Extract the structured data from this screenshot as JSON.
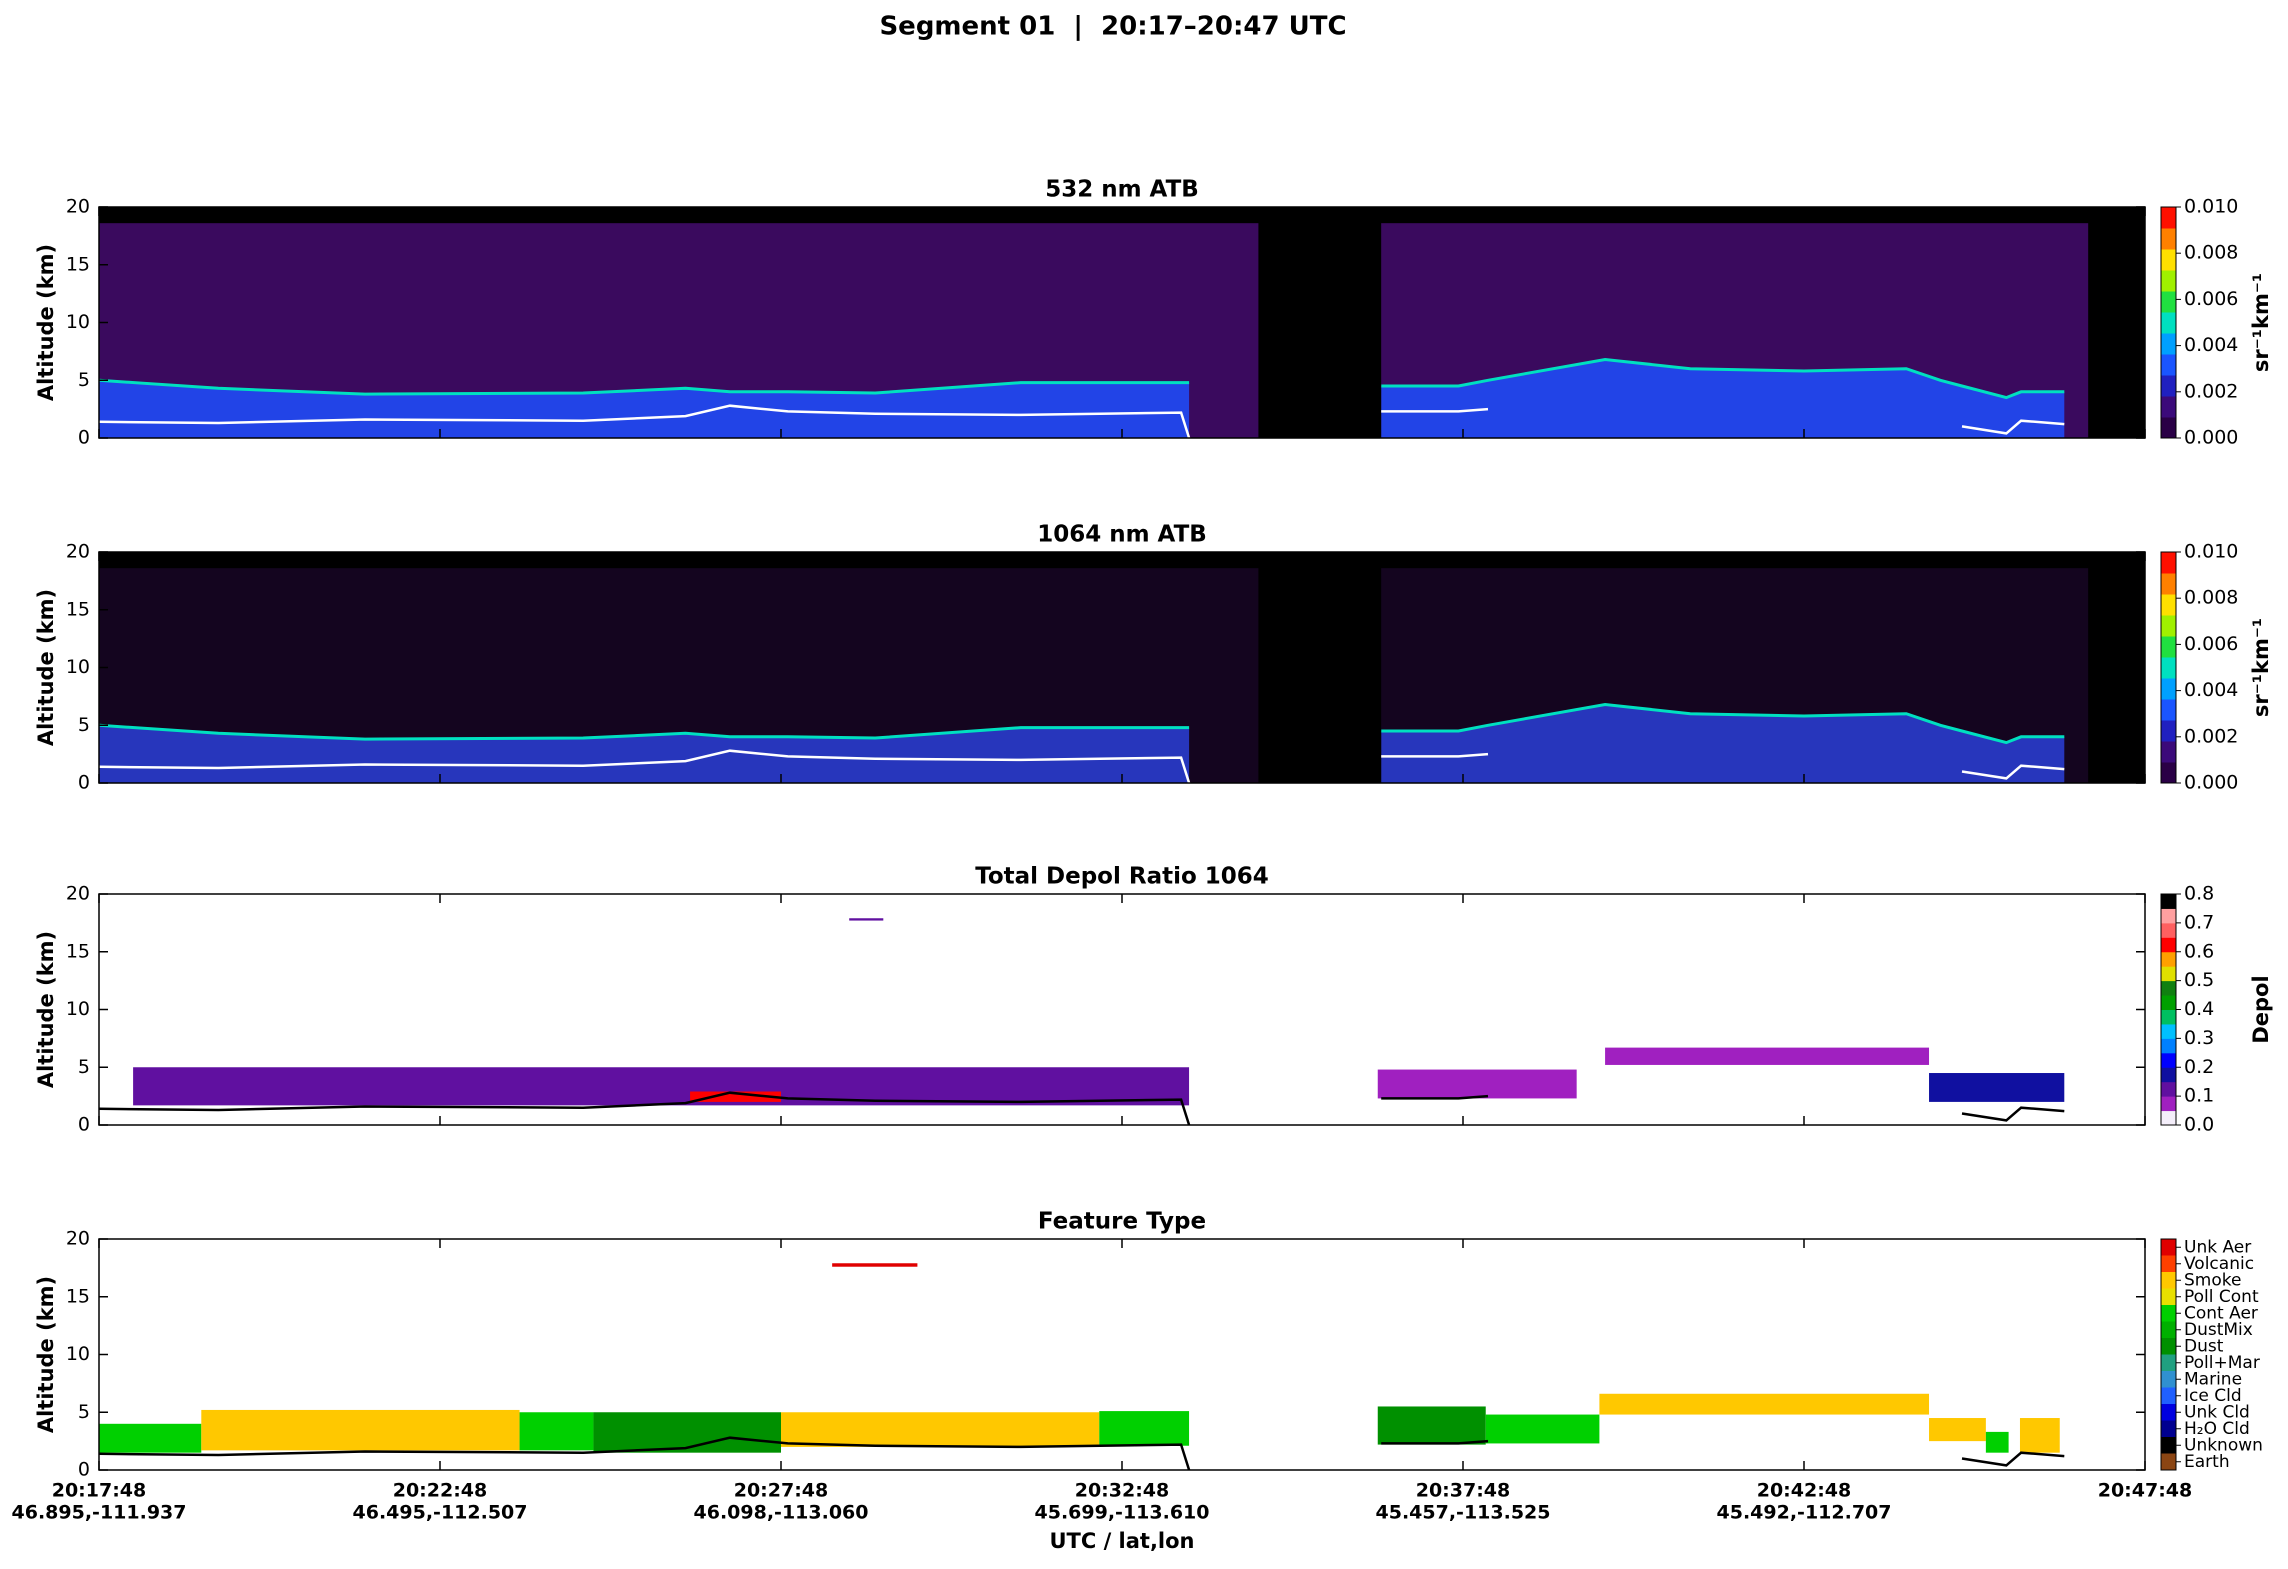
{
  "title": "Segment 01  |  20:17–20:47 UTC",
  "track": {
    "x": [
      0,
      105,
      234,
      426,
      516,
      555,
      606,
      683,
      811,
      952,
      959,
      1020,
      1128,
      1196,
      1222,
      1325,
      1400,
      1500,
      1590,
      1620,
      1639,
      1678,
      1691,
      1729
    ],
    "surface": [
      1.4,
      1.3,
      1.6,
      1.5,
      1.9,
      2.8,
      2.3,
      2.1,
      2.0,
      2.2,
      0,
      null,
      2.3,
      2.3,
      2.5,
      null,
      null,
      null,
      null,
      null,
      1.0,
      0.4,
      1.5,
      1.2
    ],
    "layer_top": [
      5.0,
      4.3,
      3.8,
      3.9,
      4.3,
      4.0,
      4.0,
      3.9,
      4.8,
      4.8,
      4.8,
      null,
      4.5,
      4.5,
      5.0,
      6.8,
      6.0,
      5.8,
      6.0,
      5.0,
      4.5,
      3.5,
      4.0,
      4.0
    ],
    "gaps": [
      [
        1020,
        1128
      ],
      [
        1750,
        1800
      ]
    ]
  },
  "chart_data": [
    {
      "type": "curtain",
      "title": "532 nm ATB",
      "ylabel": "Altitude (km)",
      "xlim": [
        0,
        1800
      ],
      "ylim": [
        0,
        20
      ],
      "yticks": [
        0,
        5,
        10,
        15,
        20
      ],
      "background": "#3a0a5e",
      "layer_color": "#1f4fff",
      "surface_color": "#ffffff",
      "colorbar": {
        "label": "sr⁻¹km⁻¹",
        "lim": [
          0,
          0.01
        ],
        "ticks": [
          {
            "value": 0,
            "label": "0.000"
          },
          {
            "value": 0.002,
            "label": "0.002"
          },
          {
            "value": 0.004,
            "label": "0.004"
          },
          {
            "value": 0.006,
            "label": "0.006"
          },
          {
            "value": 0.008,
            "label": "0.008"
          },
          {
            "value": 0.01,
            "label": "0.010"
          }
        ],
        "colormap": [
          "#2a0046",
          "#3b0a7a",
          "#2020c0",
          "#1a55ff",
          "#00a0ff",
          "#00e0c0",
          "#20e040",
          "#a0f000",
          "#ffe000",
          "#ff8000",
          "#ff1000"
        ]
      }
    },
    {
      "type": "curtain",
      "title": "1064 nm ATB",
      "ylabel": "Altitude (km)",
      "xlim": [
        0,
        1800
      ],
      "ylim": [
        0,
        20
      ],
      "yticks": [
        0,
        5,
        10,
        15,
        20
      ],
      "background": "#14051f",
      "layer_color": "#2a3fd8",
      "surface_color": "#ffffff",
      "colorbar": {
        "label": "sr⁻¹km⁻¹",
        "lim": [
          0,
          0.01
        ],
        "ticks": [
          {
            "value": 0,
            "label": "0.000"
          },
          {
            "value": 0.002,
            "label": "0.002"
          },
          {
            "value": 0.004,
            "label": "0.004"
          },
          {
            "value": 0.006,
            "label": "0.006"
          },
          {
            "value": 0.008,
            "label": "0.008"
          },
          {
            "value": 0.01,
            "label": "0.010"
          }
        ],
        "colormap": [
          "#2a0046",
          "#3b0a7a",
          "#2020c0",
          "#1a55ff",
          "#00a0ff",
          "#00e0c0",
          "#20e040",
          "#a0f000",
          "#ffe000",
          "#ff8000",
          "#ff1000"
        ]
      }
    },
    {
      "type": "depol",
      "title": "Total Depol Ratio 1064",
      "ylabel": "Altitude (km)",
      "xlim": [
        0,
        1800
      ],
      "ylim": [
        0,
        20
      ],
      "yticks": [
        0,
        5,
        10,
        15,
        20
      ],
      "surface_color": "#000000",
      "segments": [
        {
          "x0": 30,
          "x1": 959,
          "top": 5.0,
          "base": 1.7,
          "value": 0.12
        },
        {
          "x0": 520,
          "x1": 600,
          "top": 2.9,
          "base": 2.0,
          "value": 0.62
        },
        {
          "x0": 660,
          "x1": 690,
          "top": 17.9,
          "base": 17.7,
          "value": 0.12
        },
        {
          "x0": 1125,
          "x1": 1300,
          "top": 4.8,
          "base": 2.3,
          "value": 0.06
        },
        {
          "x0": 1325,
          "x1": 1610,
          "top": 6.7,
          "base": 5.2,
          "value": 0.06
        },
        {
          "x0": 1610,
          "x1": 1729,
          "top": 4.5,
          "base": 2.0,
          "value": 0.17
        }
      ],
      "colorbar": {
        "label": "Depol",
        "lim": [
          0,
          0.8
        ],
        "ticks": [
          {
            "value": 0,
            "label": "0.0"
          },
          0.1,
          0.2,
          0.3,
          0.4,
          0.5,
          0.6,
          0.7,
          0.8
        ],
        "colormap": [
          "#f4eefa",
          "#a020c0",
          "#6010a0",
          "#1010a0",
          "#0000ff",
          "#0080ff",
          "#00c0ff",
          "#00c060",
          "#00a000",
          "#108010",
          "#e0e000",
          "#ffa000",
          "#ff0000",
          "#ff6060",
          "#ffa0a0",
          "#000000"
        ]
      }
    },
    {
      "type": "feature",
      "title": "Feature Type",
      "ylabel": "Altitude (km)",
      "xlabel": "UTC / lat,lon",
      "xlim": [
        0,
        1800
      ],
      "ylim": [
        0,
        20
      ],
      "yticks": [
        0,
        5,
        10,
        15,
        20
      ],
      "surface_color": "#000000",
      "xticks": [
        {
          "value": 0,
          "label": "20:17:48",
          "sublabel": "46.895,-111.937"
        },
        {
          "value": 300,
          "label": "20:22:48",
          "sublabel": "46.495,-112.507"
        },
        {
          "value": 600,
          "label": "20:27:48",
          "sublabel": "46.098,-113.060"
        },
        {
          "value": 900,
          "label": "20:32:48",
          "sublabel": "45.699,-113.610"
        },
        {
          "value": 1200,
          "label": "20:37:48",
          "sublabel": "45.457,-113.525"
        },
        {
          "value": 1500,
          "label": "20:42:48",
          "sublabel": "45.492,-112.707"
        },
        {
          "value": 1800,
          "label": "20:47:48"
        }
      ],
      "segments": [
        {
          "x0": 0,
          "x1": 90,
          "top": 4.0,
          "base": 1.5,
          "class": "Cont Aer"
        },
        {
          "x0": 90,
          "x1": 370,
          "top": 5.2,
          "base": 1.7,
          "class": "Smoke"
        },
        {
          "x0": 370,
          "x1": 435,
          "top": 5.0,
          "base": 1.7,
          "class": "Cont Aer"
        },
        {
          "x0": 435,
          "x1": 600,
          "top": 5.0,
          "base": 1.5,
          "class": "Dust"
        },
        {
          "x0": 600,
          "x1": 880,
          "top": 5.0,
          "base": 2.0,
          "class": "Smoke"
        },
        {
          "x0": 880,
          "x1": 959,
          "top": 5.1,
          "base": 2.1,
          "class": "Cont Aer"
        },
        {
          "x0": 645,
          "x1": 720,
          "top": 17.9,
          "base": 17.6,
          "class": "Unk Aer"
        },
        {
          "x0": 1125,
          "x1": 1220,
          "top": 5.5,
          "base": 2.2,
          "class": "Dust"
        },
        {
          "x0": 1220,
          "x1": 1320,
          "top": 4.8,
          "base": 2.3,
          "class": "Cont Aer"
        },
        {
          "x0": 1320,
          "x1": 1610,
          "top": 6.6,
          "base": 4.8,
          "class": "Smoke"
        },
        {
          "x0": 1610,
          "x1": 1660,
          "top": 4.5,
          "base": 2.5,
          "class": "Smoke"
        },
        {
          "x0": 1660,
          "x1": 1680,
          "top": 3.3,
          "base": 1.5,
          "class": "Cont Aer"
        },
        {
          "x0": 1690,
          "x1": 1725,
          "top": 4.5,
          "base": 1.5,
          "class": "Smoke"
        }
      ],
      "colorbar": {
        "categories": [
          {
            "name": "Unk Aer",
            "color": "#e00000"
          },
          {
            "name": "Volcanic",
            "color": "#ff4000"
          },
          {
            "name": "Smoke",
            "color": "#ffc800"
          },
          {
            "name": "Poll Cont",
            "color": "#e8e000"
          },
          {
            "name": "Cont Aer",
            "color": "#00d000"
          },
          {
            "name": "DustMix",
            "color": "#00b000"
          },
          {
            "name": "Dust",
            "color": "#009000"
          },
          {
            "name": "Poll+Mar",
            "color": "#20a080"
          },
          {
            "name": "Marine",
            "color": "#3090d0"
          },
          {
            "name": "Ice Cld",
            "color": "#2060ff"
          },
          {
            "name": "Unk Cld",
            "color": "#0000e0"
          },
          {
            "name": "H₂O Cld",
            "color": "#000090"
          },
          {
            "name": "Unknown",
            "color": "#000000"
          },
          {
            "name": "Earth",
            "color": "#8b4513"
          }
        ]
      }
    }
  ]
}
